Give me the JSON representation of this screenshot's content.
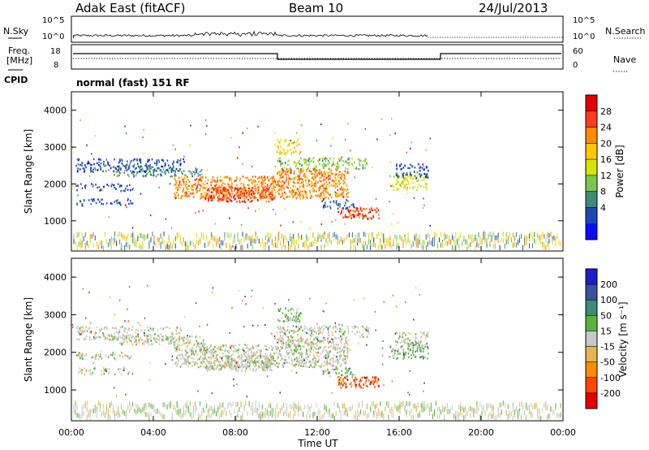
{
  "header": {
    "station": "Adak East (fitACF)",
    "beam": "Beam 10",
    "date": "24/Jul/2013"
  },
  "status_panels": {
    "nsky_label": "N.Sky",
    "nsky_ticks": [
      "10^5",
      "10^0"
    ],
    "nsearch_label": "N.Search",
    "nsearch_ticks": [
      "10^5",
      "10^0"
    ],
    "freq_label_line1": "Freq.",
    "freq_label_line2": "[MHz]",
    "freq_ticks": [
      "18",
      "8"
    ],
    "nave_label": "Nave",
    "nave_ticks": [
      "60",
      "0"
    ],
    "cpid_label": "CPID",
    "cpid_text": "normal (fast) 151 RF"
  },
  "chart_data": [
    {
      "type": "heatmap",
      "title": "",
      "xlabel": "Time UT",
      "ylabel": "Slant Range [km]",
      "x_ticks": [
        "00:00",
        "04:00",
        "08:00",
        "12:00",
        "16:00",
        "20:00",
        "00:00"
      ],
      "y_ticks": [
        4000,
        3000,
        2000,
        1000
      ],
      "xlim_hours": [
        0,
        24
      ],
      "ylim_km": [
        180,
        4500
      ],
      "colorbar": {
        "label": "Power [dB]",
        "ticks": [
          "28",
          "24",
          "20",
          "16",
          "12",
          "8",
          "4"
        ],
        "colors": [
          "#e60000",
          "#ff3c1e",
          "#ff8c00",
          "#ffc800",
          "#d2e600",
          "#78c850",
          "#3c8c78",
          "#1e46b4",
          "#0a0aff"
        ]
      }
    },
    {
      "type": "heatmap",
      "title": "",
      "xlabel": "Time UT",
      "ylabel": "Slant Range [km]",
      "x_ticks": [
        "00:00",
        "04:00",
        "08:00",
        "12:00",
        "16:00",
        "20:00",
        "00:00"
      ],
      "y_ticks": [
        4000,
        3000,
        2000,
        1000
      ],
      "xlim_hours": [
        0,
        24
      ],
      "ylim_km": [
        180,
        4500
      ],
      "colorbar": {
        "label_main": "Velocity",
        "label_unit": "[m s⁻¹]",
        "ticks": [
          "200",
          "100",
          "50",
          "15",
          "-15",
          "-50",
          "-100",
          "-200"
        ],
        "colors": [
          "#1e1ec8",
          "#3c50a0",
          "#3c8c78",
          "#5ab43c",
          "#c8c8c8",
          "#e6b450",
          "#ff8c00",
          "#ff4600",
          "#e60000"
        ]
      }
    }
  ]
}
